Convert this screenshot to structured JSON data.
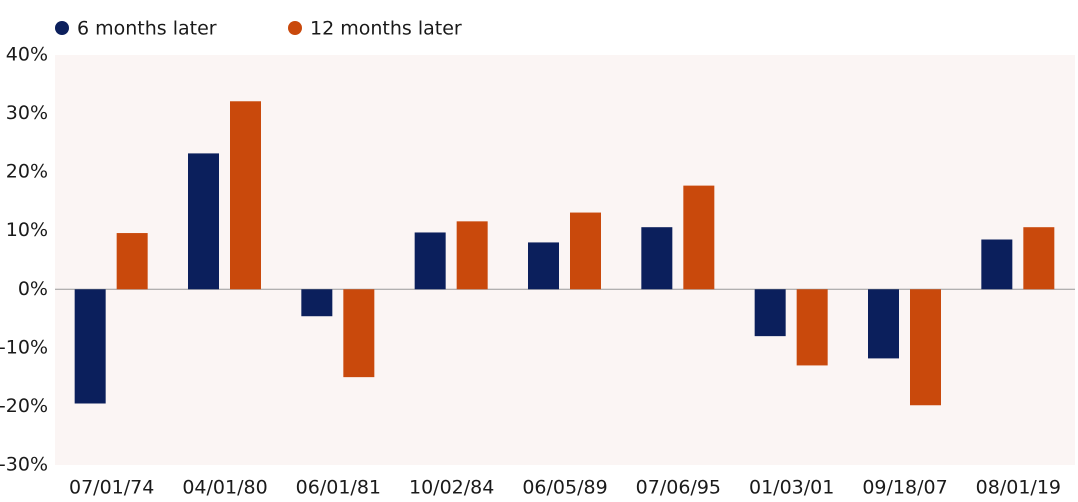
{
  "chart_data": {
    "type": "bar",
    "categories": [
      "07/01/74",
      "04/01/80",
      "06/01/81",
      "10/02/84",
      "06/05/89",
      "07/06/95",
      "01/03/01",
      "09/18/07",
      "08/01/19"
    ],
    "series": [
      {
        "name": "6 months later",
        "color": "#0b1f5c",
        "values": [
          -19.5,
          23.2,
          -4.6,
          9.7,
          8.0,
          10.6,
          -8.0,
          -11.8,
          8.5
        ]
      },
      {
        "name": "12 months later",
        "color": "#c9490c",
        "values": [
          9.6,
          32.1,
          -15.0,
          11.6,
          13.1,
          17.7,
          -13.0,
          -19.8,
          10.6
        ]
      }
    ],
    "ylim": [
      -30,
      40
    ],
    "yticks": [
      {
        "value": -30,
        "label": "-30%"
      },
      {
        "value": -20,
        "label": "-20%"
      },
      {
        "value": -10,
        "label": "-10%"
      },
      {
        "value": 0,
        "label": "0%"
      },
      {
        "value": 10,
        "label": "10%"
      },
      {
        "value": 20,
        "label": "20%"
      },
      {
        "value": 30,
        "label": "30%"
      },
      {
        "value": 40,
        "label": "40%"
      }
    ],
    "background": "#fbf5f4"
  }
}
